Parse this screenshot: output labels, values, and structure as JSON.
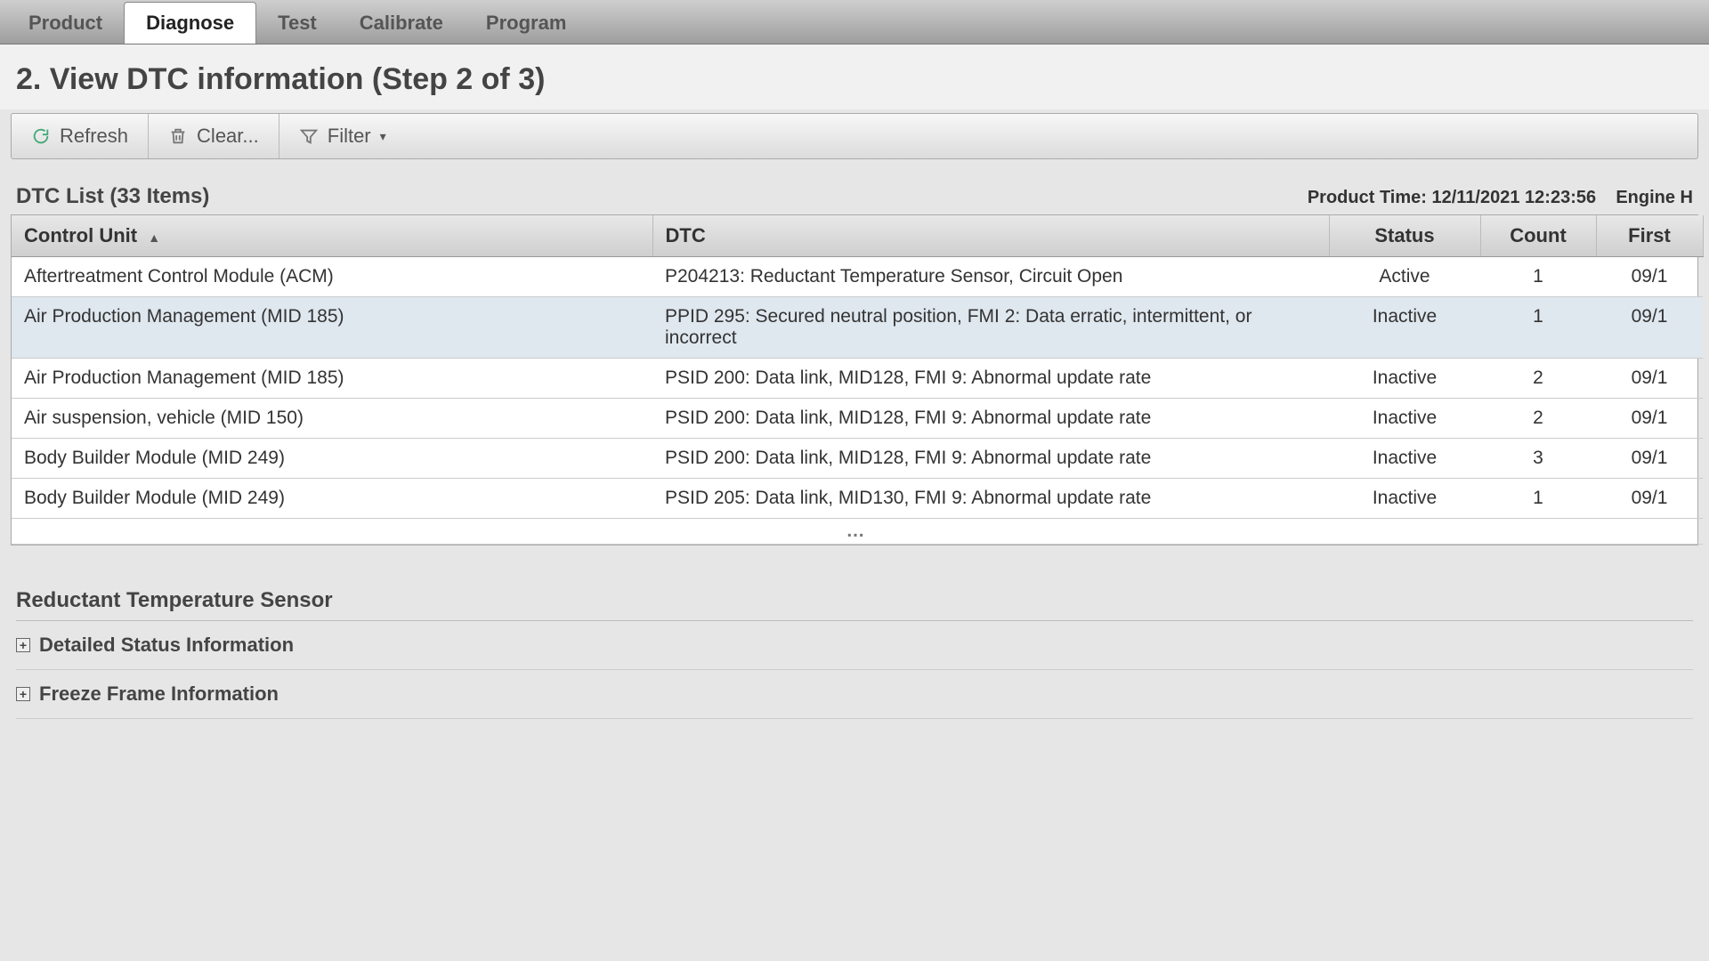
{
  "tabs": [
    {
      "label": "Product",
      "active": false
    },
    {
      "label": "Diagnose",
      "active": true
    },
    {
      "label": "Test",
      "active": false
    },
    {
      "label": "Calibrate",
      "active": false
    },
    {
      "label": "Program",
      "active": false
    }
  ],
  "page_title": "2. View DTC information (Step 2 of 3)",
  "toolbar": {
    "refresh": "Refresh",
    "clear": "Clear...",
    "filter": "Filter"
  },
  "list_header": {
    "title": "DTC List (33 Items)",
    "product_time_label": "Product Time:",
    "product_time_value": "12/11/2021 12:23:56",
    "engine_label": "Engine H"
  },
  "columns": {
    "control_unit": "Control Unit",
    "dtc": "DTC",
    "status": "Status",
    "count": "Count",
    "first": "First"
  },
  "rows": [
    {
      "cu": "Aftertreatment Control Module (ACM)",
      "dtc": "P204213: Reductant Temperature Sensor, Circuit Open",
      "status": "Active",
      "count": "1",
      "first": "09/1",
      "selected": false
    },
    {
      "cu": "Air Production Management (MID 185)",
      "dtc": "PPID 295: Secured neutral position, FMI 2: Data erratic, intermittent, or incorrect",
      "status": "Inactive",
      "count": "1",
      "first": "09/1",
      "selected": true
    },
    {
      "cu": "Air Production Management (MID 185)",
      "dtc": "PSID 200: Data link, MID128, FMI 9: Abnormal update rate",
      "status": "Inactive",
      "count": "2",
      "first": "09/1",
      "selected": false
    },
    {
      "cu": "Air suspension, vehicle (MID 150)",
      "dtc": "PSID 200: Data link, MID128, FMI 9: Abnormal update rate",
      "status": "Inactive",
      "count": "2",
      "first": "09/1",
      "selected": false
    },
    {
      "cu": "Body Builder Module (MID 249)",
      "dtc": "PSID 200: Data link, MID128, FMI 9: Abnormal update rate",
      "status": "Inactive",
      "count": "3",
      "first": "09/1",
      "selected": false
    },
    {
      "cu": "Body Builder Module (MID 249)",
      "dtc": "PSID 205: Data link, MID130, FMI 9: Abnormal update rate",
      "status": "Inactive",
      "count": "1",
      "first": "09/1",
      "selected": false
    }
  ],
  "detail": {
    "title": "Reductant Temperature Sensor",
    "sections": [
      "Detailed Status Information",
      "Freeze Frame Information"
    ]
  },
  "colors": {
    "tabbar_bg_top": "#cfcfcf",
    "tabbar_bg_bottom": "#9e9e9e",
    "active_tab_bg": "#ffffff",
    "page_bg": "#f1f1f1",
    "header_grad_top": "#e8e8e8",
    "header_grad_bottom": "#cfcfcf",
    "selected_row_bg": "#dfe7ef",
    "border": "#aaaaaa",
    "text": "#333333"
  }
}
